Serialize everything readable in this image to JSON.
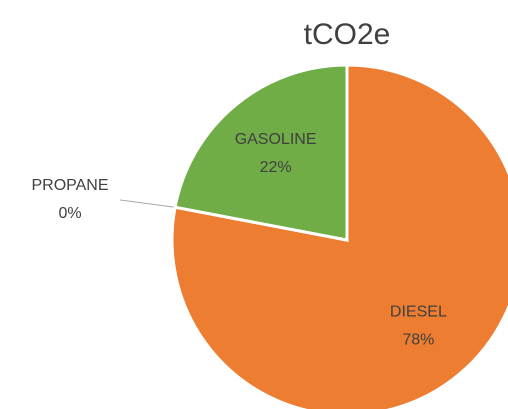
{
  "chart_data": {
    "type": "pie",
    "title": "tCO2e",
    "categories": [
      "DIESEL",
      "PROPANE",
      "GASOLINE"
    ],
    "values": [
      78,
      0,
      22
    ],
    "value_labels": [
      "78%",
      "0%",
      "22%"
    ],
    "colors": [
      "#ed7d31",
      "#a5a5a5",
      "#70ad47"
    ]
  }
}
